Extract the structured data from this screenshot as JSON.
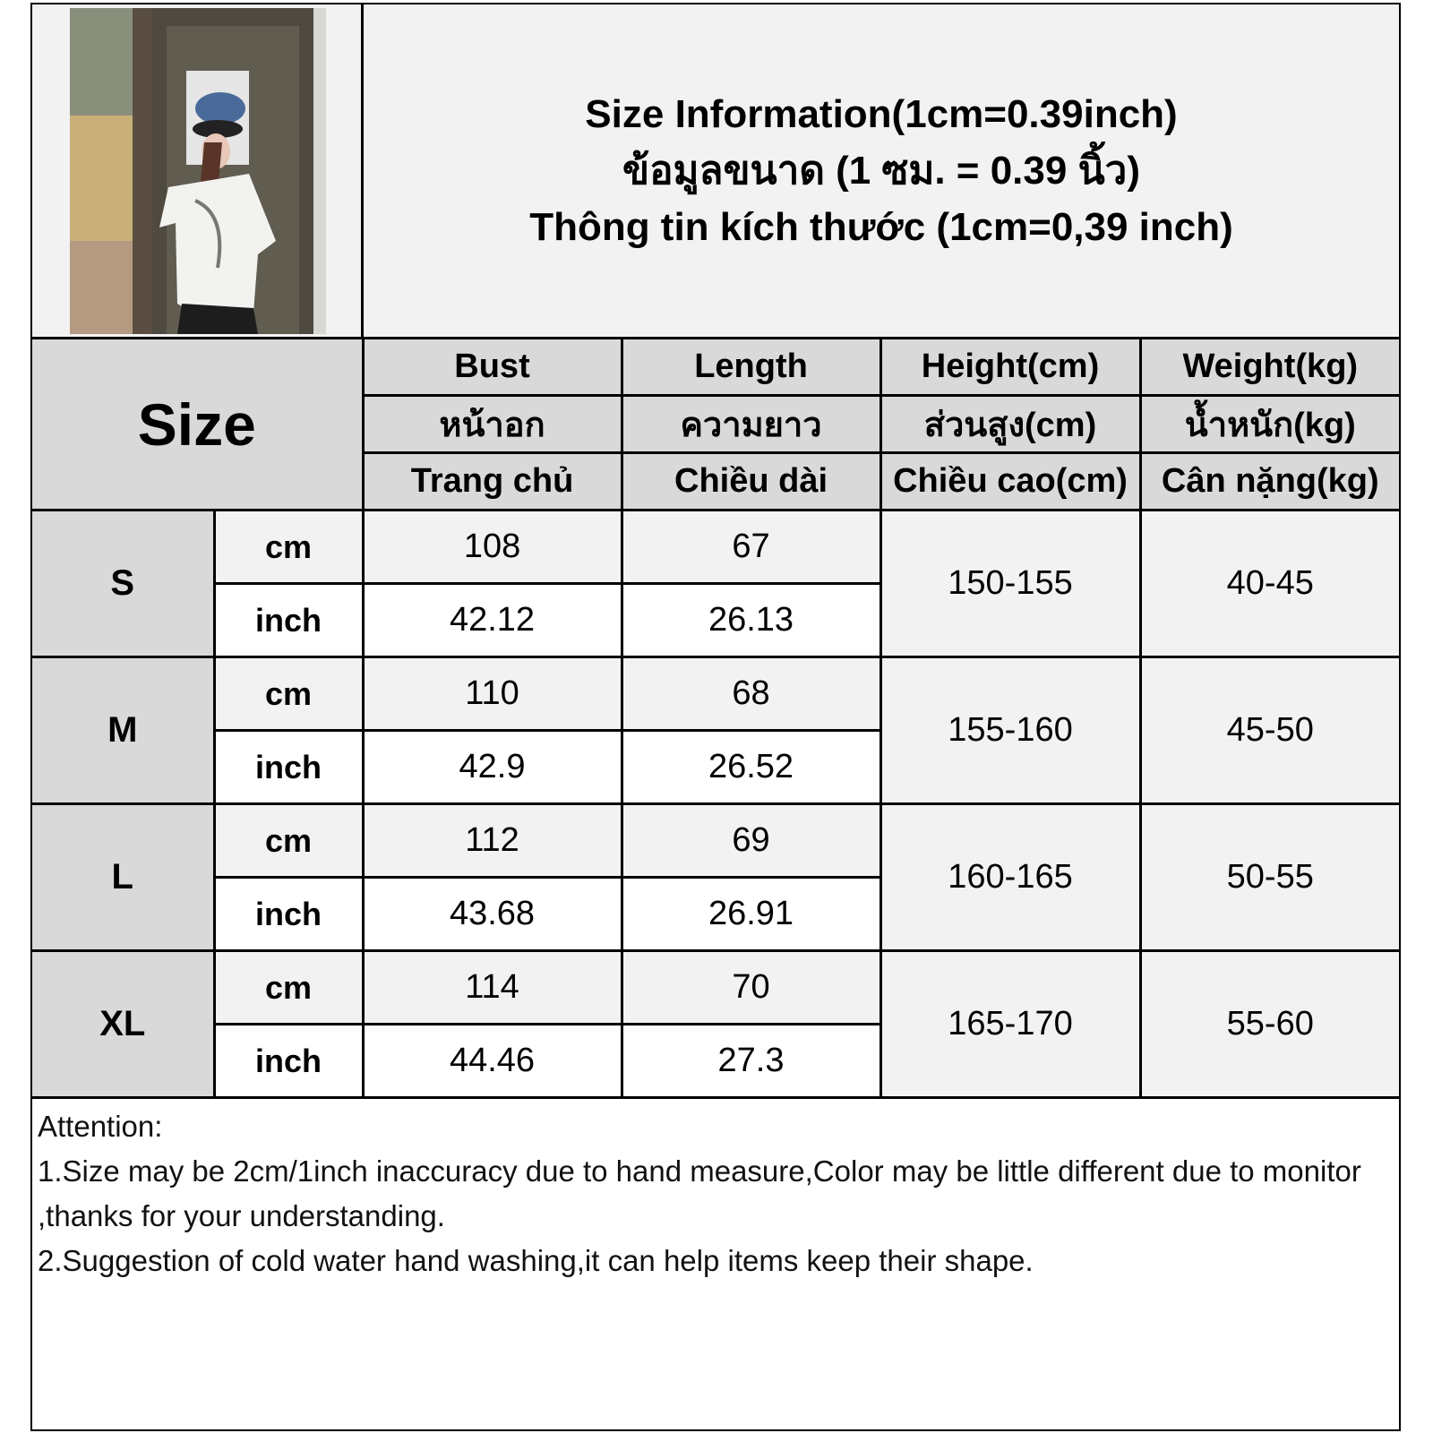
{
  "title": {
    "line_en": "Size Information(1cm=0.39inch)",
    "line_th": "ข้อมูลขนาด (1 ซม. = 0.39 นิ้ว)",
    "line_vi": "Thông tin kích thước (1cm=0,39 inch)"
  },
  "table": {
    "size_header": "Size",
    "columns": [
      {
        "en": "Bust",
        "th": "หน้าอก",
        "vi": "Trang chủ"
      },
      {
        "en": "Length",
        "th": "ความยาว",
        "vi": "Chiều dài"
      },
      {
        "en": "Height(cm)",
        "th": "ส่วนสูง(cm)",
        "vi": "Chiều cao(cm)"
      },
      {
        "en": "Weight(kg)",
        "th": "น้ำหนัก(kg)",
        "vi": "Cân nặng(kg)"
      }
    ],
    "unit_cm": "cm",
    "unit_inch": "inch",
    "rows": [
      {
        "size": "S",
        "bust_cm": "108",
        "length_cm": "67",
        "bust_inch": "42.12",
        "length_inch": "26.13",
        "height": "150-155",
        "weight": "40-45"
      },
      {
        "size": "M",
        "bust_cm": "110",
        "length_cm": "68",
        "bust_inch": "42.9",
        "length_inch": "26.52",
        "height": "155-160",
        "weight": "45-50"
      },
      {
        "size": "L",
        "bust_cm": "112",
        "length_cm": "69",
        "bust_inch": "43.68",
        "length_inch": "26.91",
        "height": "160-165",
        "weight": "50-55"
      },
      {
        "size": "XL",
        "bust_cm": "114",
        "length_cm": "70",
        "bust_inch": "44.46",
        "length_inch": "27.3",
        "height": "165-170",
        "weight": "55-60"
      }
    ]
  },
  "notes": {
    "heading": "Attention:",
    "line1": "1.Size may be 2cm/1inch inaccuracy due to hand measure,Color may be little different due to monitor ,thanks for your understanding.",
    "line2": "2.Suggestion of cold water hand washing,it can help items keep their shape."
  },
  "colors": {
    "header_gray": "#d9d9d9",
    "light_gray": "#f2f2f2",
    "border": "#000000"
  }
}
